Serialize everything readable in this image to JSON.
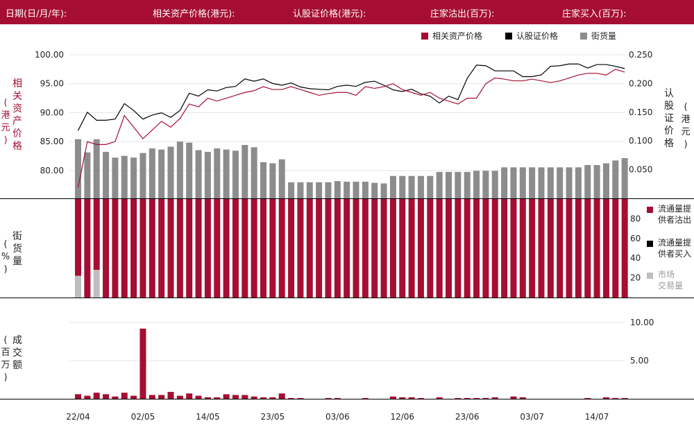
{
  "header": {
    "date_label": "日期(日/月/年):",
    "underlying_label": "相关资产价格(港元):",
    "warrant_label": "认股证价格(港元):",
    "mm_sell_label": "庄家沽出(百万):",
    "mm_buy_label": "庄家买入(百万):"
  },
  "colors": {
    "brand": "#a50e32",
    "underlying": "#a50e32",
    "warrant": "#000000",
    "outstanding": "#8c8c8c",
    "market": "#bdbdbd"
  },
  "chart_data": [
    {
      "type": "bar+line",
      "legend": [
        "相关资产价格",
        "认股证价格",
        "街货量"
      ],
      "ylabel_left": "相关资产价格(港元)",
      "ylabel_right": "认股证价格(港元)",
      "y_left_ticks": [
        "100.00",
        "95.00",
        "90.00",
        "85.00",
        "80.00"
      ],
      "y_right_ticks": [
        "0.250",
        "0.200",
        "0.150",
        "0.100",
        "0.050"
      ],
      "ylim_left": [
        75.2,
        100.0
      ],
      "ylim_right": [
        0.0,
        0.25
      ],
      "underlying": [
        77.1,
        85.0,
        84.5,
        84.5,
        85.0,
        89.5,
        87.5,
        85.5,
        87.0,
        88.5,
        87.5,
        89.0,
        91.5,
        91.0,
        92.5,
        92.0,
        92.5,
        93.0,
        93.5,
        93.8,
        94.5,
        94.0,
        94.0,
        94.5,
        94.0,
        93.5,
        93.0,
        93.3,
        93.5,
        93.5,
        93.0,
        94.5,
        94.2,
        94.5,
        95.0,
        94.0,
        93.5,
        93.0,
        93.5,
        92.5,
        92.0,
        91.5,
        92.5,
        92.5,
        95.0,
        96.0,
        95.8,
        95.5,
        95.5,
        95.8,
        95.5,
        95.2,
        95.5,
        96.0,
        96.5,
        96.8,
        96.8,
        96.5,
        97.5,
        97.0
      ],
      "warrant": [
        0.118,
        0.15,
        0.136,
        0.136,
        0.138,
        0.165,
        0.153,
        0.138,
        0.145,
        0.149,
        0.141,
        0.153,
        0.183,
        0.178,
        0.189,
        0.187,
        0.193,
        0.195,
        0.208,
        0.204,
        0.208,
        0.2,
        0.197,
        0.201,
        0.194,
        0.191,
        0.19,
        0.189,
        0.195,
        0.197,
        0.195,
        0.202,
        0.204,
        0.197,
        0.189,
        0.186,
        0.19,
        0.182,
        0.178,
        0.166,
        0.178,
        0.172,
        0.209,
        0.232,
        0.231,
        0.222,
        0.222,
        0.222,
        0.212,
        0.212,
        0.215,
        0.23,
        0.231,
        0.234,
        0.234,
        0.227,
        0.233,
        0.233,
        0.23,
        0.226
      ],
      "outstanding_pct": [
        0.103,
        0.08,
        0.103,
        0.081,
        0.071,
        0.074,
        0.071,
        0.079,
        0.087,
        0.085,
        0.09,
        0.099,
        0.097,
        0.084,
        0.081,
        0.087,
        0.085,
        0.083,
        0.093,
        0.089,
        0.063,
        0.061,
        0.068,
        0.028,
        0.028,
        0.028,
        0.028,
        0.028,
        0.03,
        0.029,
        0.029,
        0.029,
        0.027,
        0.026,
        0.039,
        0.039,
        0.039,
        0.039,
        0.039,
        0.046,
        0.046,
        0.046,
        0.046,
        0.048,
        0.048,
        0.048,
        0.054,
        0.054,
        0.054,
        0.054,
        0.054,
        0.054,
        0.054,
        0.054,
        0.054,
        0.058,
        0.058,
        0.061,
        0.066,
        0.07
      ],
      "x_tick_labels": [
        "22/04",
        "02/05",
        "14/05",
        "23/05",
        "03/06",
        "12/06",
        "23/06",
        "03/07",
        "14/07"
      ]
    },
    {
      "type": "stacked-bar",
      "ylabel": "街货量(%)",
      "y_ticks": [
        "80",
        "60",
        "40",
        "20"
      ],
      "ylim": [
        0,
        100
      ],
      "series_names": [
        "流通量提供者沽出",
        "流通量提供者买入",
        "市场交易量"
      ],
      "mm_sell_pct": [
        78,
        100,
        72,
        100,
        100,
        100,
        100,
        100,
        100,
        100,
        100,
        100,
        100,
        100,
        100,
        100,
        100,
        100,
        100,
        100,
        100,
        100,
        100,
        100,
        100,
        100,
        100,
        100,
        100,
        100,
        100,
        100,
        100,
        100,
        100,
        100,
        100,
        100,
        100,
        100,
        100,
        100,
        100,
        100,
        100,
        100,
        100,
        100,
        100,
        100,
        100,
        100,
        100,
        100,
        100,
        100,
        100,
        100,
        100,
        100
      ],
      "mm_buy_pct": [
        0,
        0,
        0,
        0,
        0,
        0,
        0,
        0,
        0,
        0,
        0,
        0,
        0,
        0,
        0,
        0,
        0,
        0,
        0,
        0,
        0,
        0,
        0,
        0,
        0,
        0,
        0,
        0,
        0,
        0,
        0,
        0,
        0,
        0,
        0,
        0,
        0,
        0,
        0,
        0,
        0,
        0,
        0,
        0,
        0,
        0,
        0,
        0,
        0,
        0,
        0,
        0,
        0,
        0,
        0,
        0,
        0,
        0,
        0,
        0
      ]
    },
    {
      "type": "bar",
      "ylabel": "成交额(百万)",
      "y_ticks": [
        "10.00",
        "5.00"
      ],
      "ylim": [
        0,
        11
      ],
      "turnover": [
        0.6,
        0.4,
        0.8,
        0.6,
        0.3,
        0.8,
        0.4,
        9.2,
        0.5,
        0.5,
        0.9,
        0.4,
        0.7,
        0.4,
        0.2,
        0.2,
        0.6,
        0.5,
        0.5,
        0.3,
        0.2,
        0.2,
        0.7,
        0.1,
        0.1,
        0,
        0,
        0.1,
        0.1,
        0,
        0,
        0.1,
        0,
        0,
        0.3,
        0.2,
        0.2,
        0.1,
        0,
        0.2,
        0,
        0.1,
        0.1,
        0.1,
        0.1,
        0.2,
        0,
        0.3,
        0.2,
        0,
        0,
        0,
        0,
        0,
        0,
        0.1,
        0,
        0.2,
        0.1,
        0.1
      ]
    }
  ]
}
